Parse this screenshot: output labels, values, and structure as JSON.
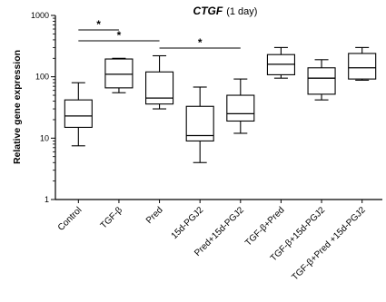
{
  "chart_data": {
    "type": "box",
    "title": "CTGF",
    "subtitle": "(1 day)",
    "ylabel": "Relative gene expression",
    "xlabel": "",
    "yscale": "log",
    "ylim": [
      1,
      1000
    ],
    "yticks": [
      1,
      10,
      100,
      1000
    ],
    "ytick_labels": [
      "1",
      "10",
      "100",
      "1000"
    ],
    "grid": false,
    "legend": "none",
    "box_color": "#000000",
    "categories": [
      "Control",
      "TGF-β",
      "Pred",
      "15d-PGJ2",
      "Pred+15d-PGJ2",
      "TGF-β+Pred",
      "TGF-β+15d-PGJ2",
      "TGF-β+Pred +15d-PGJ2"
    ],
    "boxes": [
      {
        "min": 7.5,
        "q1": 15,
        "median": 23,
        "q3": 42,
        "max": 80
      },
      {
        "min": 55,
        "q1": 66,
        "median": 110,
        "q3": 195,
        "max": 200
      },
      {
        "min": 30,
        "q1": 36,
        "median": 45,
        "q3": 120,
        "max": 220
      },
      {
        "min": 4,
        "q1": 9,
        "median": 11,
        "q3": 33,
        "max": 68
      },
      {
        "min": 12,
        "q1": 19,
        "median": 25,
        "q3": 50,
        "max": 92
      },
      {
        "min": 95,
        "q1": 108,
        "median": 160,
        "q3": 230,
        "max": 300
      },
      {
        "min": 42,
        "q1": 52,
        "median": 95,
        "q3": 140,
        "max": 190
      },
      {
        "min": 88,
        "q1": 92,
        "median": 140,
        "q3": 240,
        "max": 300
      }
    ],
    "significance": [
      {
        "from": 0,
        "to": 1,
        "label": "*"
      },
      {
        "from": 0,
        "to": 2,
        "label": "*"
      },
      {
        "from": 2,
        "to": 4,
        "label": "*"
      }
    ]
  }
}
